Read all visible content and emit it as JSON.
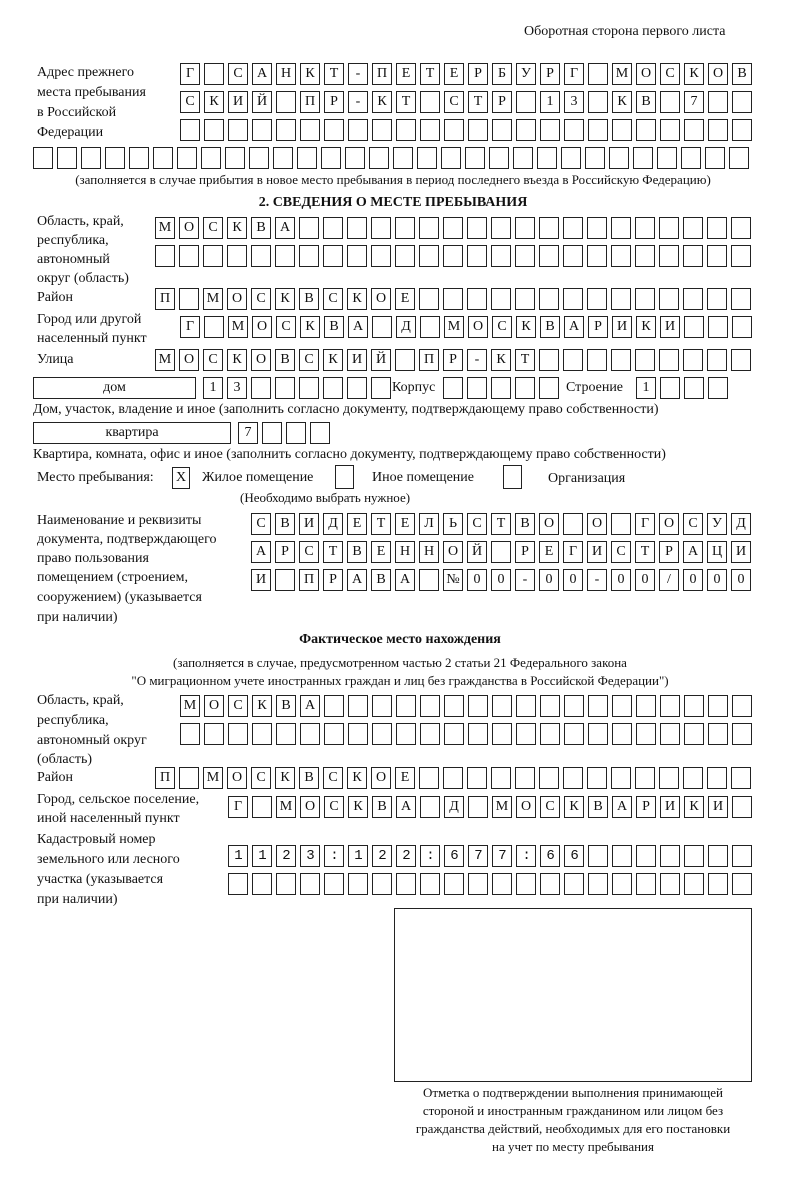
{
  "header": {
    "page_side": "Оборотная сторона первого листа"
  },
  "previous_address": {
    "label": [
      "Адрес прежнего",
      "места пребывания",
      "в Российской",
      "Федерации"
    ],
    "rows": [
      "Г САНКТ-ПЕТЕРБУРГ МОСКОВ",
      "СКИЙ ПР-КТ СТР 13 КВ 7",
      "",
      ""
    ],
    "note": "(заполняется в случае прибытия в новое место пребывания в период последнего въезда в Российскую Федерацию)"
  },
  "section2": {
    "title": "2. СВЕДЕНИЯ О МЕСТЕ ПРЕБЫВАНИЯ",
    "region": {
      "label": [
        "Область, край,",
        "республика,",
        "автономный",
        "округ (область)"
      ],
      "rows": [
        "МОСКВА",
        ""
      ]
    },
    "district": {
      "label": "Район",
      "value": "П МОСКВСКОЕ"
    },
    "city": {
      "label": [
        "Город или другой",
        "населенный пункт"
      ],
      "value": "Г МОСКВА Д МОСКВАРИКИ"
    },
    "street": {
      "label": "Улица",
      "value": "МОСКОВСКИЙ ПР-КТ"
    },
    "house": {
      "type": "дом",
      "value": "13",
      "corpus_label": "Корпус",
      "corpus": "",
      "building_label": "Строение",
      "building": "1",
      "note": "Дом, участок, владение и иное (заполнить согласно документу, подтверждающему право собственности)"
    },
    "apartment": {
      "type": "квартира",
      "value": "7",
      "note": "Квартира, комната, офис и иное (заполнить согласно документу, подтверждающему право собственности)"
    },
    "stay_place": {
      "label": "Место пребывания:",
      "options": [
        {
          "label": "Жилое помещение",
          "mark": "Х"
        },
        {
          "label": "Иное помещение",
          "mark": ""
        },
        {
          "label": "Организация",
          "mark": ""
        }
      ],
      "note": "(Необходимо выбрать нужное)"
    },
    "document": {
      "label": [
        "Наименование и реквизиты",
        "документа, подтверждающего",
        "право пользования",
        "помещением (строением,",
        "сооружением) (указывается",
        "при наличии)"
      ],
      "rows": [
        "СВИДЕТЕЛЬСТВО О ГОСУД",
        "АРСТВЕННОЙ РЕГИСТРАЦИ",
        "И ПРАВА №00-00-00/000"
      ]
    }
  },
  "actual": {
    "title": "Фактическое место нахождения",
    "note": [
      "(заполняется в случае, предусмотренном частью 2 статьи 21 Федерального закона",
      "\"О миграционном учете иностранных граждан и лиц без гражданства в Российской Федерации\")"
    ],
    "region": {
      "label": [
        "Область, край,",
        "республика,",
        "автономный округ",
        "(область)"
      ],
      "rows": [
        "МОСКВА",
        ""
      ]
    },
    "district": {
      "label": "Район",
      "value": "П МОСКВСКОЕ"
    },
    "city": {
      "label": [
        "Город, сельское поселение,",
        "иной населенный пункт"
      ],
      "value": "Г МОСКВА Д МОСКВАРИКИ"
    },
    "cadastral": {
      "label": [
        "Кадастровый номер",
        "земельного или лесного",
        "участка (указывается",
        "при наличии)"
      ],
      "rows": [
        "1123:122:677:66",
        ""
      ]
    }
  },
  "confirmation": {
    "caption": [
      "Отметка о подтверждении выполнения принимающей",
      "стороной и иностранным гражданином или лицом без",
      "гражданства действий, необходимых для его постановки",
      "на учет по месту пребывания"
    ]
  }
}
